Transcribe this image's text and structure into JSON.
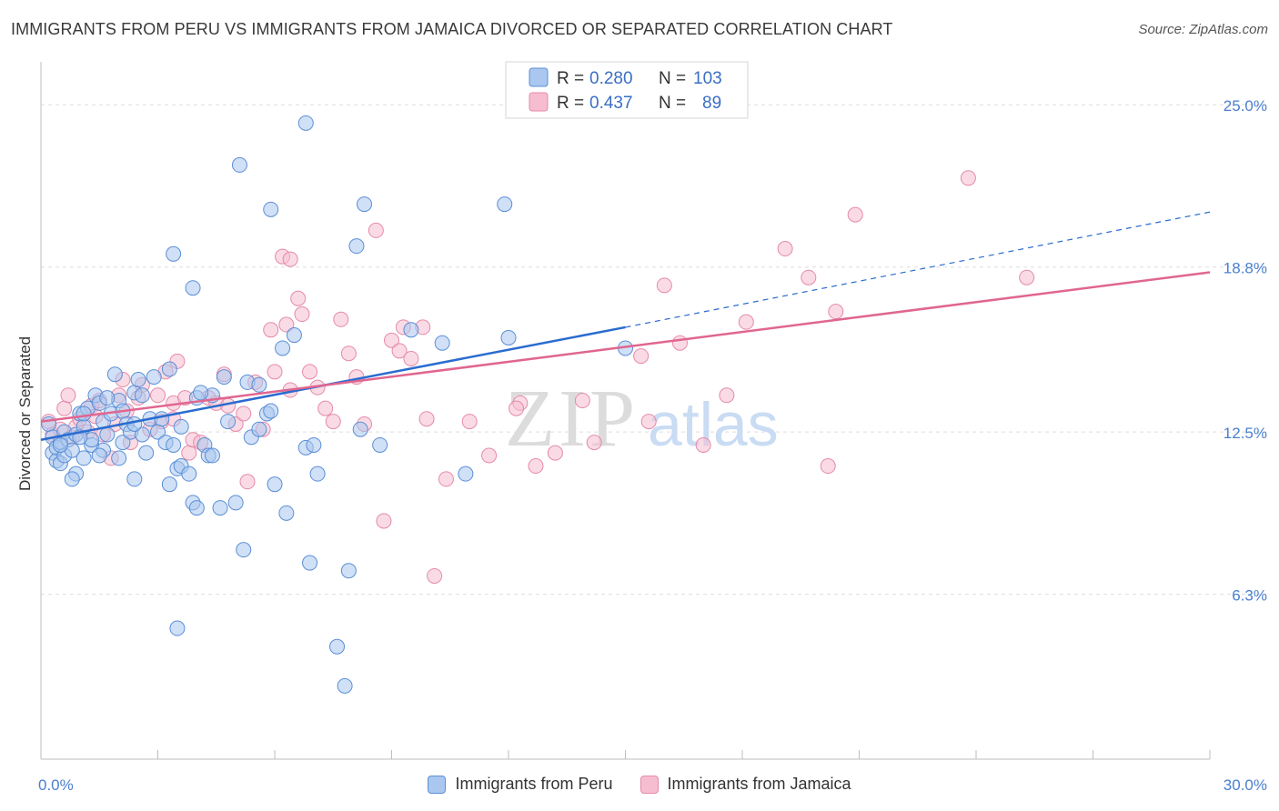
{
  "title": "IMMIGRANTS FROM PERU VS IMMIGRANTS FROM JAMAICA DIVORCED OR SEPARATED CORRELATION CHART",
  "source": "Source: ZipAtlas.com",
  "watermark": {
    "zip": "ZIP",
    "atlas": "atlas"
  },
  "colors": {
    "peru_fill": "#a9c7ef",
    "peru_stroke": "#5b8fd6",
    "peru_line": "#2a6ccf",
    "jamaica_fill": "#f6bdd0",
    "jamaica_stroke": "#e58aaa",
    "jamaica_line": "#e0668f",
    "tick_text": "#4a7fd0",
    "grid": "#dedede"
  },
  "legend": {
    "rows": [
      {
        "r_label": "R =",
        "r_value": "0.280",
        "n_label": "N =",
        "n_value": "103"
      },
      {
        "r_label": "R =",
        "r_value": "0.437",
        "n_label": "N =",
        "n_value": "89"
      }
    ]
  },
  "chart_data": {
    "type": "scatter",
    "title": "IMMIGRANTS FROM PERU VS IMMIGRANTS FROM JAMAICA DIVORCED OR SEPARATED CORRELATION CHART",
    "xlabel": "",
    "ylabel": "Divorced or Separated",
    "xlim": [
      0,
      30
    ],
    "ylim": [
      0,
      26.5
    ],
    "x_tick_labels": [
      "0.0%",
      "30.0%"
    ],
    "y_ticks": [
      6.3,
      12.5,
      18.8,
      25.0
    ],
    "y_tick_labels": [
      "6.3%",
      "12.5%",
      "18.8%",
      "25.0%"
    ],
    "grid": true,
    "legend_position": "top-center",
    "series": [
      {
        "name": "Immigrants from Peru",
        "r": 0.28,
        "n": 103,
        "trend": {
          "x0": 0.0,
          "y0": 12.2,
          "x1": 15.0,
          "y1": 16.5,
          "dash_to_x": 30.0,
          "dash_to_y": 20.9
        },
        "points": [
          [
            0.2,
            12.8
          ],
          [
            0.3,
            12.3
          ],
          [
            0.3,
            11.7
          ],
          [
            0.4,
            11.4
          ],
          [
            0.4,
            11.9
          ],
          [
            0.5,
            12.1
          ],
          [
            0.5,
            11.3
          ],
          [
            0.6,
            11.6
          ],
          [
            0.6,
            12.5
          ],
          [
            0.7,
            12.2
          ],
          [
            0.8,
            11.8
          ],
          [
            0.9,
            12.4
          ],
          [
            0.9,
            10.9
          ],
          [
            1.0,
            13.2
          ],
          [
            1.1,
            12.7
          ],
          [
            1.1,
            11.5
          ],
          [
            1.2,
            13.4
          ],
          [
            1.3,
            12.0
          ],
          [
            1.4,
            13.9
          ],
          [
            1.5,
            13.6
          ],
          [
            1.6,
            12.9
          ],
          [
            1.6,
            11.8
          ],
          [
            1.7,
            12.4
          ],
          [
            1.8,
            13.2
          ],
          [
            1.9,
            14.7
          ],
          [
            2.0,
            13.7
          ],
          [
            2.1,
            13.3
          ],
          [
            2.1,
            12.1
          ],
          [
            2.2,
            12.8
          ],
          [
            2.3,
            12.5
          ],
          [
            2.4,
            14.0
          ],
          [
            2.5,
            14.5
          ],
          [
            2.6,
            13.9
          ],
          [
            2.7,
            11.7
          ],
          [
            2.8,
            13.0
          ],
          [
            2.9,
            14.6
          ],
          [
            3.0,
            12.5
          ],
          [
            3.2,
            12.1
          ],
          [
            3.3,
            14.9
          ],
          [
            3.4,
            12.0
          ],
          [
            3.5,
            11.1
          ],
          [
            3.6,
            11.2
          ],
          [
            3.8,
            10.9
          ],
          [
            3.9,
            9.8
          ],
          [
            4.0,
            9.6
          ],
          [
            4.2,
            12.0
          ],
          [
            4.3,
            11.6
          ],
          [
            4.4,
            13.9
          ],
          [
            4.6,
            9.6
          ],
          [
            4.7,
            14.6
          ],
          [
            4.8,
            12.9
          ],
          [
            5.0,
            9.8
          ],
          [
            5.1,
            22.7
          ],
          [
            5.2,
            8.0
          ],
          [
            5.3,
            14.4
          ],
          [
            5.4,
            12.3
          ],
          [
            5.6,
            12.6
          ],
          [
            5.8,
            13.2
          ],
          [
            5.9,
            21.0
          ],
          [
            6.0,
            10.5
          ],
          [
            6.2,
            15.7
          ],
          [
            6.3,
            9.4
          ],
          [
            6.5,
            16.2
          ],
          [
            6.8,
            11.9
          ],
          [
            6.9,
            7.5
          ],
          [
            7.0,
            12.0
          ],
          [
            7.1,
            10.9
          ],
          [
            6.8,
            24.3
          ],
          [
            7.6,
            4.3
          ],
          [
            7.8,
            2.8
          ],
          [
            7.9,
            7.2
          ],
          [
            8.1,
            19.6
          ],
          [
            8.2,
            12.6
          ],
          [
            8.3,
            21.2
          ],
          [
            8.7,
            12.0
          ],
          [
            9.5,
            16.4
          ],
          [
            10.3,
            15.9
          ],
          [
            10.9,
            10.9
          ],
          [
            11.9,
            21.2
          ],
          [
            12.0,
            16.1
          ],
          [
            15.0,
            15.7
          ],
          [
            3.4,
            19.3
          ],
          [
            3.9,
            18.0
          ],
          [
            1.1,
            13.2
          ],
          [
            2.4,
            10.7
          ],
          [
            3.3,
            10.5
          ],
          [
            4.0,
            13.8
          ],
          [
            5.6,
            14.3
          ],
          [
            3.6,
            12.7
          ],
          [
            2.6,
            12.4
          ],
          [
            1.5,
            11.6
          ],
          [
            0.8,
            10.7
          ],
          [
            4.4,
            11.6
          ],
          [
            2.0,
            11.5
          ],
          [
            3.1,
            13.0
          ],
          [
            4.1,
            14.0
          ],
          [
            5.9,
            13.3
          ],
          [
            1.3,
            12.2
          ],
          [
            3.5,
            5.0
          ],
          [
            1.7,
            13.8
          ],
          [
            2.4,
            12.8
          ],
          [
            0.5,
            12.0
          ],
          [
            1.0,
            12.3
          ]
        ]
      },
      {
        "name": "Immigrants from Jamaica",
        "r": 0.437,
        "n": 89,
        "trend": {
          "x0": 0.0,
          "y0": 12.9,
          "x1": 30.0,
          "y1": 18.6
        },
        "points": [
          [
            0.2,
            12.9
          ],
          [
            0.3,
            12.4
          ],
          [
            0.5,
            12.6
          ],
          [
            0.6,
            13.4
          ],
          [
            0.7,
            13.9
          ],
          [
            0.8,
            12.3
          ],
          [
            0.9,
            12.7
          ],
          [
            1.0,
            13.0
          ],
          [
            1.2,
            12.5
          ],
          [
            1.3,
            13.5
          ],
          [
            1.4,
            13.1
          ],
          [
            1.5,
            13.7
          ],
          [
            1.6,
            12.4
          ],
          [
            1.8,
            11.5
          ],
          [
            1.9,
            12.8
          ],
          [
            2.0,
            13.9
          ],
          [
            2.1,
            14.5
          ],
          [
            2.2,
            13.3
          ],
          [
            2.3,
            12.1
          ],
          [
            2.5,
            13.8
          ],
          [
            2.6,
            14.3
          ],
          [
            2.8,
            12.6
          ],
          [
            3.0,
            13.9
          ],
          [
            3.1,
            12.9
          ],
          [
            3.2,
            14.8
          ],
          [
            3.4,
            13.6
          ],
          [
            3.5,
            15.2
          ],
          [
            3.7,
            13.8
          ],
          [
            3.8,
            11.7
          ],
          [
            3.9,
            12.2
          ],
          [
            4.1,
            12.1
          ],
          [
            4.3,
            13.8
          ],
          [
            4.5,
            13.6
          ],
          [
            4.7,
            14.7
          ],
          [
            4.8,
            13.5
          ],
          [
            5.0,
            12.8
          ],
          [
            5.2,
            13.2
          ],
          [
            5.3,
            10.6
          ],
          [
            5.5,
            14.4
          ],
          [
            5.7,
            12.6
          ],
          [
            5.9,
            16.4
          ],
          [
            6.0,
            14.8
          ],
          [
            6.2,
            19.2
          ],
          [
            6.4,
            14.1
          ],
          [
            6.6,
            17.6
          ],
          [
            6.7,
            17.0
          ],
          [
            6.9,
            14.8
          ],
          [
            7.1,
            14.2
          ],
          [
            7.3,
            13.4
          ],
          [
            7.5,
            12.9
          ],
          [
            7.7,
            16.8
          ],
          [
            7.9,
            15.5
          ],
          [
            8.1,
            14.6
          ],
          [
            8.3,
            12.8
          ],
          [
            8.6,
            20.2
          ],
          [
            8.8,
            9.1
          ],
          [
            9.0,
            16.0
          ],
          [
            9.2,
            15.6
          ],
          [
            9.5,
            15.3
          ],
          [
            9.8,
            16.5
          ],
          [
            10.1,
            7.0
          ],
          [
            10.4,
            10.7
          ],
          [
            11.0,
            12.9
          ],
          [
            11.5,
            11.6
          ],
          [
            12.3,
            13.6
          ],
          [
            12.7,
            11.2
          ],
          [
            13.2,
            11.7
          ],
          [
            13.9,
            13.7
          ],
          [
            14.2,
            12.1
          ],
          [
            15.4,
            15.4
          ],
          [
            15.6,
            12.9
          ],
          [
            16.4,
            15.9
          ],
          [
            17.0,
            12.0
          ],
          [
            17.6,
            13.9
          ],
          [
            18.1,
            16.7
          ],
          [
            19.1,
            19.5
          ],
          [
            19.7,
            18.4
          ],
          [
            20.2,
            11.2
          ],
          [
            20.4,
            17.1
          ],
          [
            20.9,
            20.8
          ],
          [
            23.8,
            22.2
          ],
          [
            25.3,
            18.4
          ],
          [
            6.3,
            16.6
          ],
          [
            9.3,
            16.5
          ],
          [
            12.2,
            13.4
          ],
          [
            9.9,
            13.0
          ],
          [
            16.0,
            18.1
          ],
          [
            3.4,
            13.0
          ],
          [
            6.4,
            19.1
          ]
        ]
      }
    ]
  },
  "bottom_legend": {
    "items": [
      "Immigrants from Peru",
      "Immigrants from Jamaica"
    ]
  }
}
